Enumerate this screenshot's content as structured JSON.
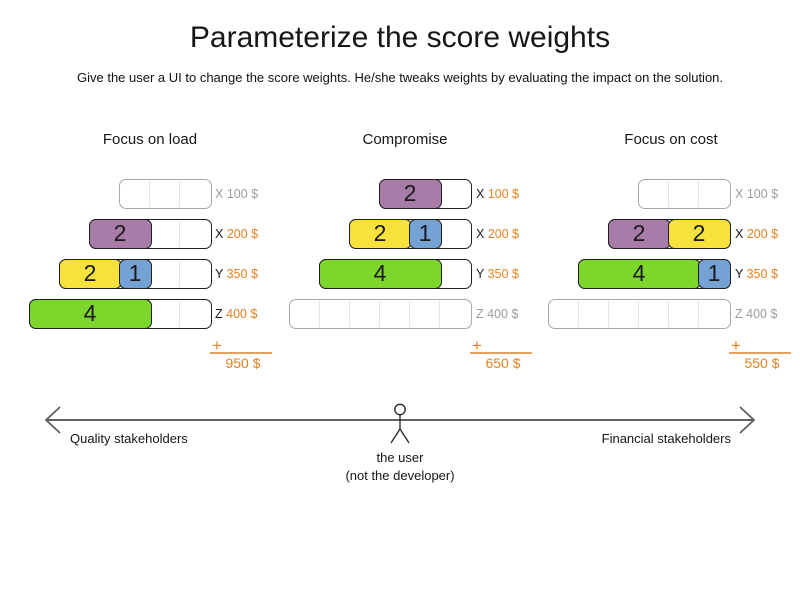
{
  "title": "Parameterize the score weights",
  "subtitle": "Give the user a UI to change the score weights. He/she tweaks weights by evaluating the impact on the solution.",
  "sum_symbol": "+",
  "columns": [
    {
      "title": "Focus on load",
      "total": "950 $",
      "rows": [
        {
          "computer": "X",
          "cost": "100 $",
          "capacity_units": 3,
          "active": false,
          "segments": []
        },
        {
          "computer": "X",
          "cost": "200 $",
          "capacity_units": 4,
          "active": true,
          "segments": [
            {
              "value": "2",
              "color": "purple",
              "units": 2
            }
          ]
        },
        {
          "computer": "Y",
          "cost": "350 $",
          "capacity_units": 5,
          "active": true,
          "segments": [
            {
              "value": "2",
              "color": "yellow",
              "units": 2
            },
            {
              "value": "1",
              "color": "blue",
              "units": 1
            }
          ]
        },
        {
          "computer": "Z",
          "cost": "400 $",
          "capacity_units": 6,
          "active": true,
          "segments": [
            {
              "value": "4",
              "color": "green",
              "units": 4
            }
          ]
        }
      ]
    },
    {
      "title": "Compromise",
      "total": "650 $",
      "rows": [
        {
          "computer": "X",
          "cost": "100 $",
          "capacity_units": 3,
          "active": true,
          "segments": [
            {
              "value": "2",
              "color": "purple",
              "units": 2
            }
          ]
        },
        {
          "computer": "X",
          "cost": "200 $",
          "capacity_units": 4,
          "active": true,
          "segments": [
            {
              "value": "2",
              "color": "yellow",
              "units": 2
            },
            {
              "value": "1",
              "color": "blue",
              "units": 1
            }
          ]
        },
        {
          "computer": "Y",
          "cost": "350 $",
          "capacity_units": 5,
          "active": true,
          "segments": [
            {
              "value": "4",
              "color": "green",
              "units": 4
            }
          ]
        },
        {
          "computer": "Z",
          "cost": "400 $",
          "capacity_units": 6,
          "active": false,
          "segments": []
        }
      ]
    },
    {
      "title": "Focus on cost",
      "total": "550 $",
      "rows": [
        {
          "computer": "X",
          "cost": "100 $",
          "capacity_units": 3,
          "active": false,
          "segments": []
        },
        {
          "computer": "X",
          "cost": "200 $",
          "capacity_units": 4,
          "active": true,
          "segments": [
            {
              "value": "2",
              "color": "purple",
              "units": 2
            },
            {
              "value": "2",
              "color": "yellow",
              "units": 2
            }
          ]
        },
        {
          "computer": "Y",
          "cost": "350 $",
          "capacity_units": 5,
          "active": true,
          "segments": [
            {
              "value": "4",
              "color": "green",
              "units": 4
            },
            {
              "value": "1",
              "color": "blue",
              "units": 1
            }
          ]
        },
        {
          "computer": "Z",
          "cost": "400 $",
          "capacity_units": 6,
          "active": false,
          "segments": []
        }
      ]
    }
  ],
  "axis": {
    "left_label": "Quality stakeholders",
    "right_label": "Financial stakeholders",
    "center_caption_line1": "the user",
    "center_caption_line2": "(not the developer)"
  },
  "colors": {
    "accent_orange": "#e2821f",
    "inactive_gray": "#9c9c9c",
    "segment_purple": "#a87ba8",
    "segment_yellow": "#f6e13d",
    "segment_blue": "#74a2d4",
    "segment_green": "#7cd62c"
  }
}
